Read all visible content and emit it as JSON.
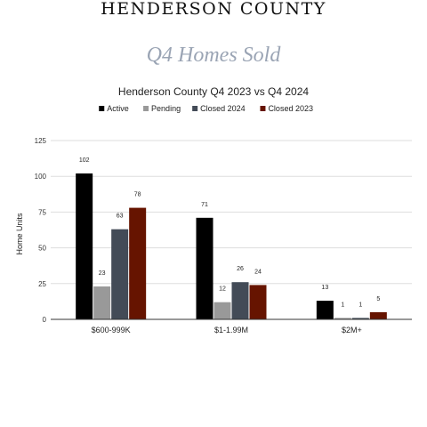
{
  "header": {
    "title": "HENDERSON COUNTY",
    "subtitle": "Q4 Homes Sold"
  },
  "chart_data": {
    "type": "bar",
    "title": "Henderson County Q4 2023 vs Q4 2024",
    "xlabel": "",
    "ylabel": "Home Units",
    "ylim": [
      0,
      125
    ],
    "yticks": [
      0,
      25,
      50,
      75,
      100,
      125
    ],
    "grid": true,
    "legend_position": "top",
    "categories": [
      "$600-999K",
      "$1-1.99M",
      "$2M+"
    ],
    "series": [
      {
        "name": "Active",
        "color": "#000000",
        "values": [
          102,
          71,
          13
        ]
      },
      {
        "name": "Pending",
        "color": "#999999",
        "values": [
          23,
          12,
          1
        ]
      },
      {
        "name": "Closed 2024",
        "color": "#434b57",
        "values": [
          63,
          26,
          1
        ]
      },
      {
        "name": "Closed 2023",
        "color": "#661400",
        "values": [
          78,
          24,
          5
        ]
      }
    ]
  }
}
